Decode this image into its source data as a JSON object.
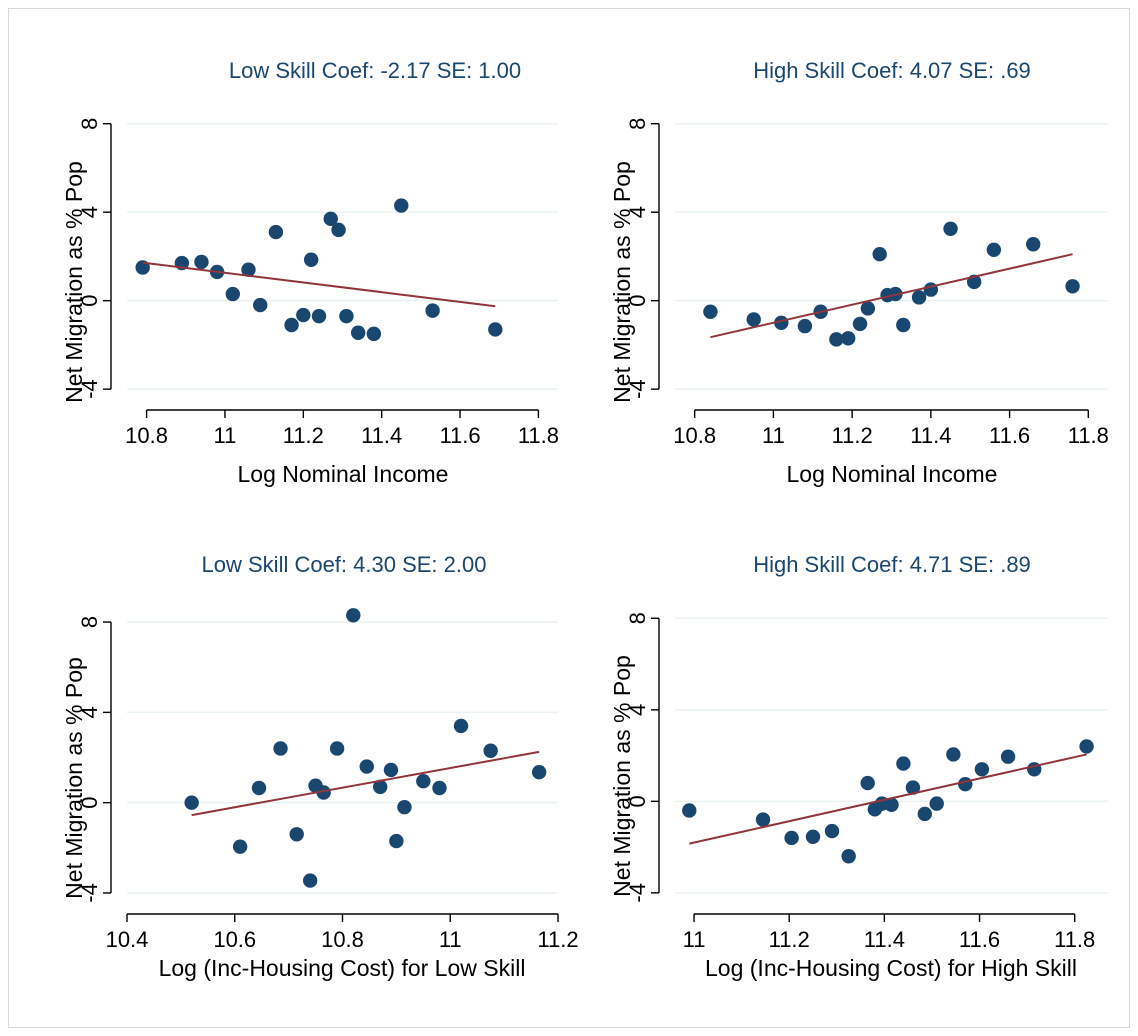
{
  "chart_data": [
    {
      "type": "scatter",
      "title": "Low Skill Coef: -2.17 SE: 1.00",
      "xlabel": "Log Nominal Income",
      "ylabel": "Net Migration as % Pop",
      "xlim": [
        10.75,
        11.85
      ],
      "ylim": [
        -4.4,
        8.8
      ],
      "xticks": [
        "10.8",
        "11",
        "11.2",
        "11.4",
        "11.6",
        "11.8"
      ],
      "yticks": [
        "-4",
        "0",
        "4",
        "8"
      ],
      "grid": true,
      "legend": "none",
      "colors": {
        "points": "#1a476f",
        "fit": "#90353b",
        "grid": "#eaf2f3",
        "title": "#1a476f"
      },
      "points": [
        {
          "x": 10.79,
          "y": 1.5
        },
        {
          "x": 10.89,
          "y": 1.7
        },
        {
          "x": 10.94,
          "y": 1.75
        },
        {
          "x": 10.98,
          "y": 1.3
        },
        {
          "x": 11.02,
          "y": 0.3
        },
        {
          "x": 11.06,
          "y": 1.4
        },
        {
          "x": 11.09,
          "y": -0.2
        },
        {
          "x": 11.13,
          "y": 3.1
        },
        {
          "x": 11.17,
          "y": -1.1
        },
        {
          "x": 11.2,
          "y": -0.65
        },
        {
          "x": 11.22,
          "y": 1.85
        },
        {
          "x": 11.24,
          "y": -0.7
        },
        {
          "x": 11.27,
          "y": 3.7
        },
        {
          "x": 11.29,
          "y": 3.2
        },
        {
          "x": 11.31,
          "y": -0.7
        },
        {
          "x": 11.34,
          "y": -1.45
        },
        {
          "x": 11.38,
          "y": -1.5
        },
        {
          "x": 11.45,
          "y": 4.3
        },
        {
          "x": 11.53,
          "y": -0.45
        },
        {
          "x": 11.69,
          "y": -1.3
        }
      ],
      "fit": [
        {
          "x": 10.79,
          "y": 1.72
        },
        {
          "x": 11.69,
          "y": -0.25
        }
      ]
    },
    {
      "type": "scatter",
      "title": "High Skill Coef: 4.07 SE: .69",
      "xlabel": "Log Nominal Income",
      "ylabel": "Net Migration as % Pop",
      "xlim": [
        10.75,
        11.85
      ],
      "ylim": [
        -4.4,
        8.8
      ],
      "xticks": [
        "10.8",
        "11",
        "11.2",
        "11.4",
        "11.6",
        "11.8"
      ],
      "yticks": [
        "-4",
        "0",
        "4",
        "8"
      ],
      "grid": true,
      "legend": "none",
      "colors": {
        "points": "#1a476f",
        "fit": "#90353b",
        "grid": "#eaf2f3",
        "title": "#1a476f"
      },
      "points": [
        {
          "x": 10.84,
          "y": -0.5
        },
        {
          "x": 10.95,
          "y": -0.85
        },
        {
          "x": 11.02,
          "y": -1.0
        },
        {
          "x": 11.08,
          "y": -1.15
        },
        {
          "x": 11.12,
          "y": -0.5
        },
        {
          "x": 11.16,
          "y": -1.75
        },
        {
          "x": 11.19,
          "y": -1.7
        },
        {
          "x": 11.22,
          "y": -1.05
        },
        {
          "x": 11.24,
          "y": -0.35
        },
        {
          "x": 11.27,
          "y": 2.1
        },
        {
          "x": 11.29,
          "y": 0.25
        },
        {
          "x": 11.31,
          "y": 0.3
        },
        {
          "x": 11.33,
          "y": -1.1
        },
        {
          "x": 11.37,
          "y": 0.15
        },
        {
          "x": 11.4,
          "y": 0.5
        },
        {
          "x": 11.45,
          "y": 3.25
        },
        {
          "x": 11.51,
          "y": 0.85
        },
        {
          "x": 11.56,
          "y": 2.3
        },
        {
          "x": 11.66,
          "y": 2.55
        },
        {
          "x": 11.76,
          "y": 0.65
        }
      ],
      "fit": [
        {
          "x": 10.84,
          "y": -1.65
        },
        {
          "x": 11.76,
          "y": 2.1
        }
      ]
    },
    {
      "type": "scatter",
      "title": "Low Skill Coef: 4.30 SE: 2.00",
      "xlabel": "Log (Inc-Housing Cost) for Low Skill",
      "ylabel": "Net Migration as % Pop",
      "xlim": [
        10.4,
        11.2
      ],
      "ylim": [
        -4.4,
        8.8
      ],
      "xticks": [
        "10.4",
        "10.6",
        "10.8",
        "11",
        "11.2"
      ],
      "yticks": [
        "-4",
        "0",
        "4",
        "8"
      ],
      "grid": true,
      "legend": "none",
      "colors": {
        "points": "#1a476f",
        "fit": "#90353b",
        "grid": "#eaf2f3",
        "title": "#1a476f"
      },
      "points": [
        {
          "x": 10.52,
          "y": 0.0
        },
        {
          "x": 10.61,
          "y": -1.95
        },
        {
          "x": 10.645,
          "y": 0.65
        },
        {
          "x": 10.685,
          "y": 2.4
        },
        {
          "x": 10.715,
          "y": -1.4
        },
        {
          "x": 10.74,
          "y": -3.45
        },
        {
          "x": 10.75,
          "y": 0.75
        },
        {
          "x": 10.765,
          "y": 0.45
        },
        {
          "x": 10.79,
          "y": 2.4
        },
        {
          "x": 10.82,
          "y": 8.3
        },
        {
          "x": 10.845,
          "y": 1.6
        },
        {
          "x": 10.87,
          "y": 0.7
        },
        {
          "x": 10.89,
          "y": 1.45
        },
        {
          "x": 10.9,
          "y": -1.7
        },
        {
          "x": 10.915,
          "y": -0.2
        },
        {
          "x": 10.95,
          "y": 0.95
        },
        {
          "x": 10.98,
          "y": 0.65
        },
        {
          "x": 11.02,
          "y": 3.4
        },
        {
          "x": 11.075,
          "y": 2.3
        },
        {
          "x": 11.165,
          "y": 1.35
        }
      ],
      "fit": [
        {
          "x": 10.52,
          "y": -0.55
        },
        {
          "x": 11.165,
          "y": 2.25
        }
      ]
    },
    {
      "type": "scatter",
      "title": "High Skill Coef: 4.71 SE: .89",
      "xlabel": "Log (Inc-Housing Cost) for High Skill",
      "ylabel": "Net Migration as % Pop",
      "xlim": [
        10.96,
        11.87
      ],
      "ylim": [
        -4.4,
        8.8
      ],
      "xticks": [
        "11",
        "11.2",
        "11.4",
        "11.6",
        "11.8"
      ],
      "yticks": [
        "-4",
        "0",
        "4",
        "8"
      ],
      "grid": true,
      "legend": "none",
      "colors": {
        "points": "#1a476f",
        "fit": "#90353b",
        "grid": "#eaf2f3",
        "title": "#1a476f"
      },
      "points": [
        {
          "x": 10.99,
          "y": -0.4
        },
        {
          "x": 11.145,
          "y": -0.8
        },
        {
          "x": 11.205,
          "y": -1.6
        },
        {
          "x": 11.25,
          "y": -1.55
        },
        {
          "x": 11.29,
          "y": -1.3
        },
        {
          "x": 11.325,
          "y": -2.4
        },
        {
          "x": 11.365,
          "y": 0.8
        },
        {
          "x": 11.38,
          "y": -0.35
        },
        {
          "x": 11.395,
          "y": -0.1
        },
        {
          "x": 11.415,
          "y": -0.15
        },
        {
          "x": 11.44,
          "y": 1.65
        },
        {
          "x": 11.46,
          "y": 0.6
        },
        {
          "x": 11.485,
          "y": -0.55
        },
        {
          "x": 11.51,
          "y": -0.1
        },
        {
          "x": 11.545,
          "y": 2.05
        },
        {
          "x": 11.57,
          "y": 0.75
        },
        {
          "x": 11.605,
          "y": 1.4
        },
        {
          "x": 11.66,
          "y": 1.95
        },
        {
          "x": 11.715,
          "y": 1.4
        },
        {
          "x": 11.825,
          "y": 2.4
        }
      ],
      "fit": [
        {
          "x": 10.99,
          "y": -1.85
        },
        {
          "x": 11.825,
          "y": 2.05
        }
      ]
    }
  ]
}
